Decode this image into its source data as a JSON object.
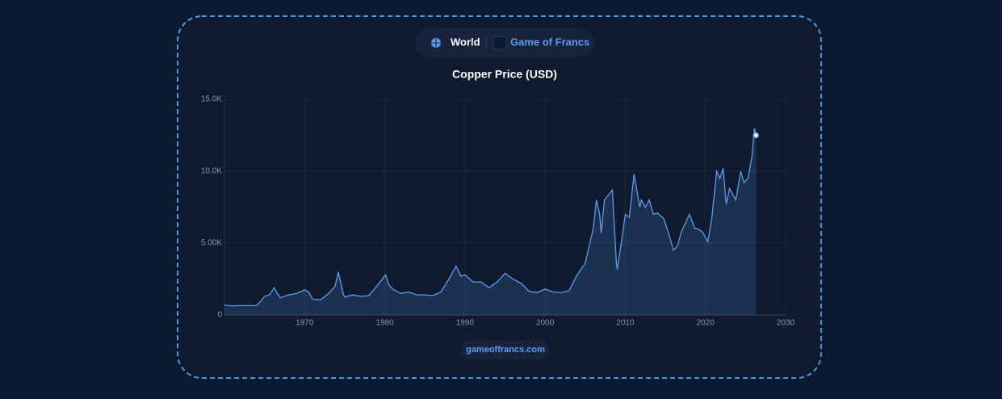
{
  "toggle": [
    "World",
    "Game of Francs"
  ],
  "footer": "gameoffrancs.com",
  "chart_data": {
    "type": "area",
    "title": "Copper Price (USD)",
    "color": "#5b9cf0",
    "x": [
      1960,
      1961,
      1962,
      1963,
      1964,
      1964.6,
      1965,
      1965.6,
      1966.2,
      1966.6,
      1967,
      1968,
      1969,
      1970,
      1970.5,
      1971,
      1972,
      1973,
      1973.8,
      1974.2,
      1974.8,
      1975,
      1976,
      1977,
      1978,
      1979,
      1980.1,
      1980.5,
      1981,
      1982,
      1983,
      1984,
      1985,
      1986,
      1987,
      1988,
      1988.9,
      1989.5,
      1990,
      1991,
      1992,
      1993,
      1994,
      1995,
      1996,
      1997,
      1998,
      1999,
      2000,
      2001,
      2002,
      2003,
      2004,
      2005,
      2006,
      2006.4,
      2006.8,
      2007,
      2007.4,
      2008.4,
      2008.9,
      2009,
      2009.5,
      2010,
      2010.5,
      2011.1,
      2011.8,
      2012,
      2012.5,
      2013,
      2013.5,
      2014,
      2014.8,
      2015.5,
      2016,
      2016.5,
      2017,
      2018,
      2018.7,
      2019,
      2019.6,
      2020.3,
      2020.8,
      2021.4,
      2021.8,
      2022.2,
      2022.6,
      2023,
      2023.8,
      2024.4,
      2024.8,
      2025.3,
      2025.8,
      2026.1,
      2026.3
    ],
    "values": [
      680,
      640,
      650,
      650,
      660,
      1000,
      1300,
      1400,
      1900,
      1500,
      1200,
      1400,
      1500,
      1750,
      1600,
      1100,
      1050,
      1500,
      2000,
      3000,
      1500,
      1250,
      1400,
      1300,
      1350,
      2000,
      2800,
      2100,
      1800,
      1500,
      1600,
      1400,
      1400,
      1350,
      1600,
      2500,
      3400,
      2700,
      2800,
      2300,
      2300,
      1900,
      2300,
      2900,
      2500,
      2200,
      1650,
      1550,
      1800,
      1600,
      1550,
      1700,
      2800,
      3600,
      6000,
      8000,
      7000,
      5700,
      8000,
      8700,
      3500,
      3200,
      5000,
      7000,
      6800,
      9800,
      7500,
      8000,
      7500,
      8000,
      7000,
      7100,
      6700,
      5500,
      4500,
      4800,
      5800,
      7000,
      6000,
      6000,
      5800,
      5100,
      6800,
      10000,
      9500,
      10200,
      7700,
      8800,
      8000,
      10000,
      9200,
      9500,
      11000,
      13000,
      12500
    ],
    "xlim": [
      1960,
      2030
    ],
    "xticks": [
      1970,
      1980,
      1990,
      2000,
      2010,
      2020,
      2030
    ],
    "ylim": [
      0,
      15000
    ],
    "yticks": [
      0,
      {
        "value": 5000,
        "label": "5.00K"
      },
      {
        "value": 10000,
        "label": "10.0K"
      },
      {
        "value": 15000,
        "label": "15.0K"
      }
    ],
    "grid": true
  }
}
